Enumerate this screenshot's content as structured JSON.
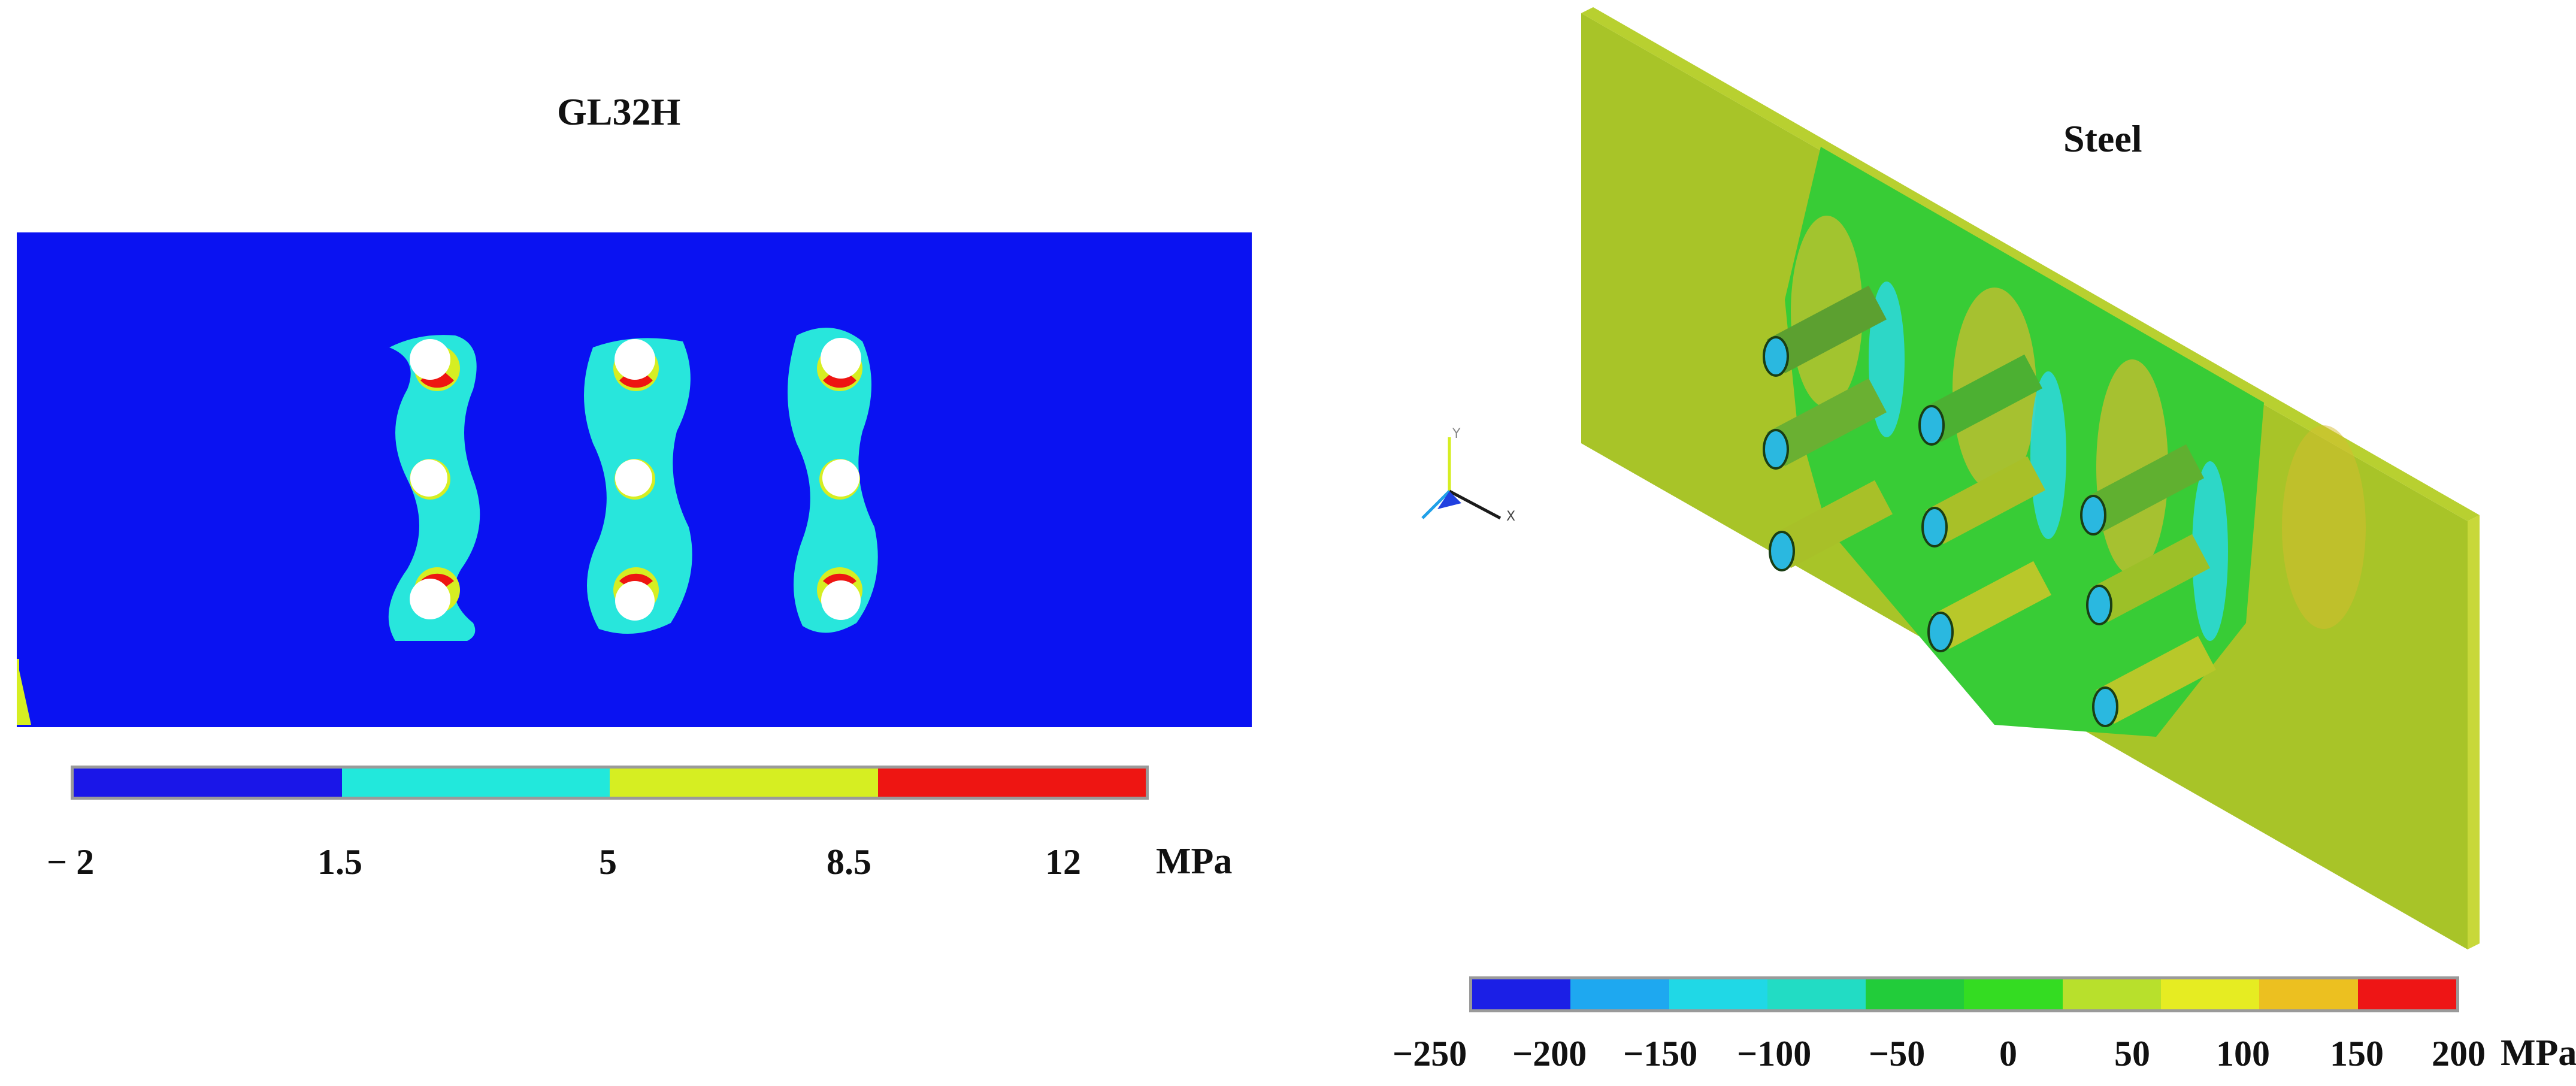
{
  "left_panel": {
    "title": "GL32H",
    "plate_color": "#0a12f2",
    "colorbar": {
      "colors": [
        "#1a16e8",
        "#22e8dc",
        "#d6ee22",
        "#ee1512"
      ],
      "tick_labels": [
        "− 2",
        "1.5",
        "5",
        "8.5",
        "12"
      ],
      "unit": "MPa"
    }
  },
  "right_panel": {
    "title": "Steel",
    "colorbar": {
      "colors": [
        "#1b1fe6",
        "#1ea8f0",
        "#20d8e6",
        "#22dcc4",
        "#22cc3a",
        "#34dc22",
        "#b8e02c",
        "#e6ec22",
        "#ecc020",
        "#ee1515"
      ],
      "tick_labels": [
        "−250",
        "−200",
        "−150",
        "−100",
        "−50",
        "0",
        "50",
        "100",
        "150",
        "200"
      ],
      "unit": "MPa"
    },
    "triad_labels": [
      "Y",
      "X"
    ]
  }
}
